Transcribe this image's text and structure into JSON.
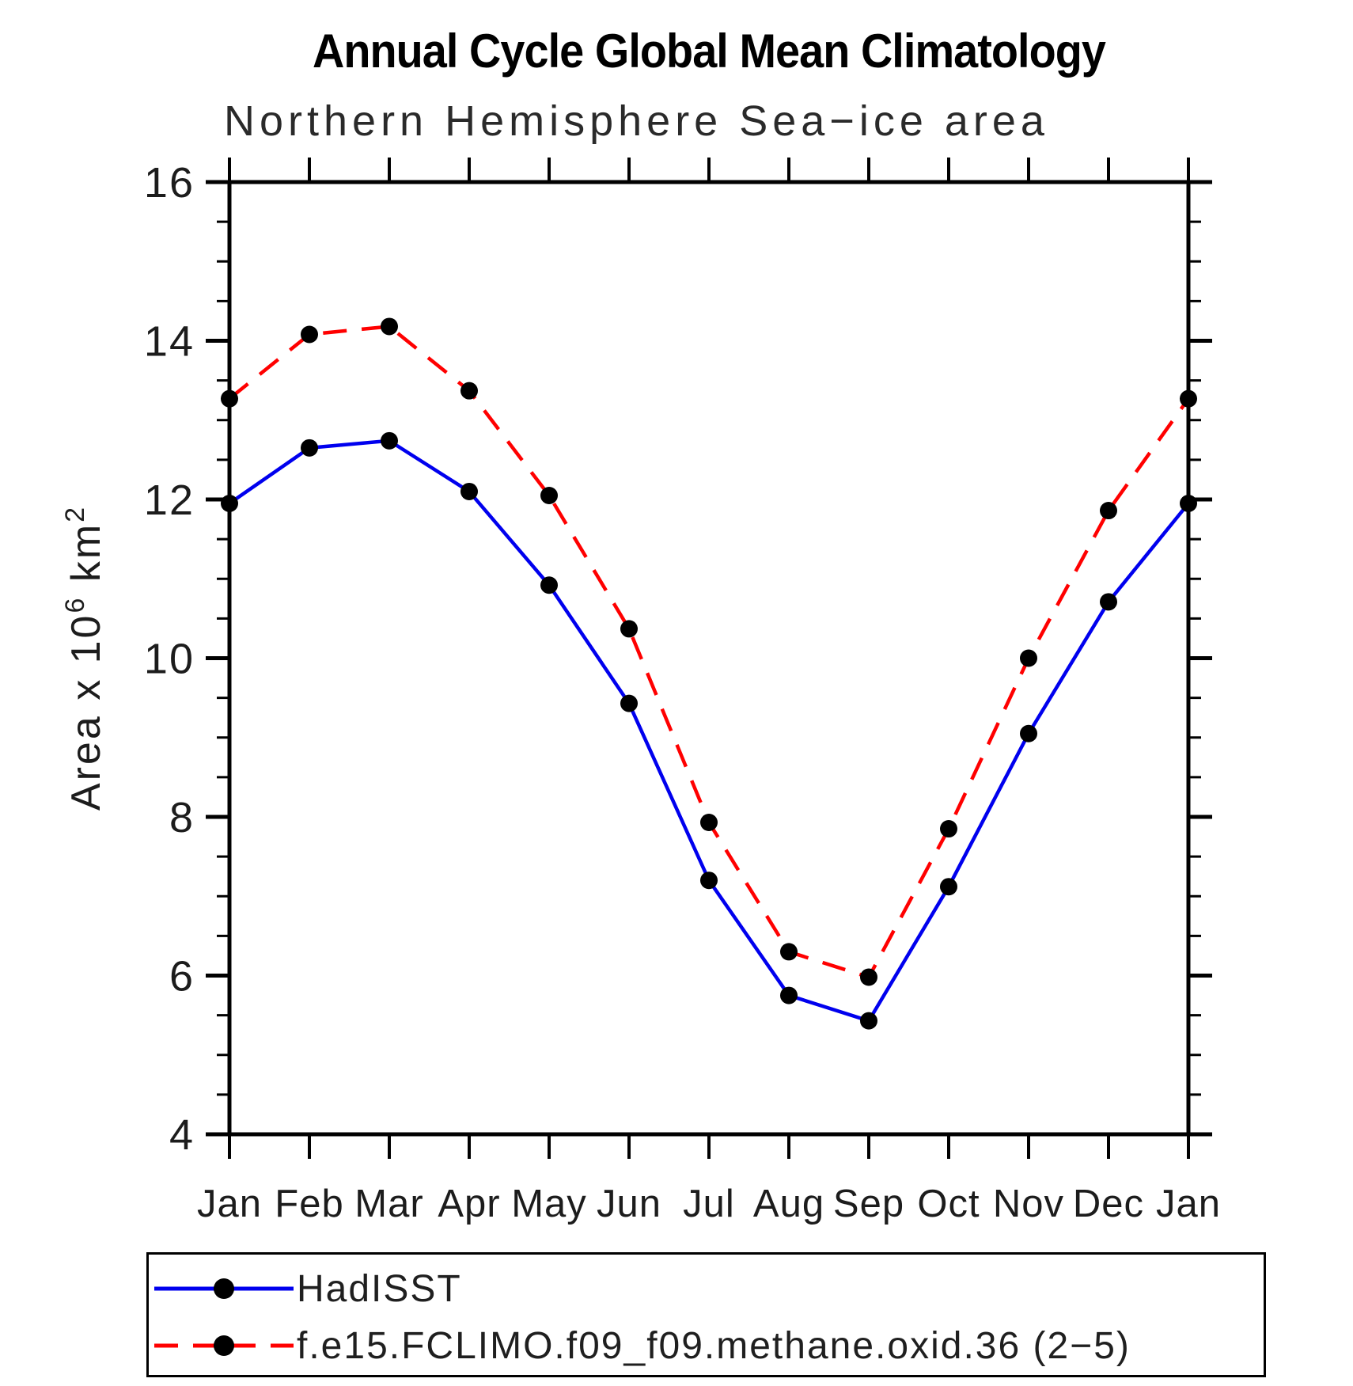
{
  "chart_data": {
    "type": "line",
    "title": "Annual Cycle Global Mean Climatology",
    "subtitle": "Northern Hemisphere Sea−ice area",
    "ylabel_parts": {
      "prefix": "Area x 10",
      "sup1": "6",
      "mid": " km",
      "sup2": "2"
    },
    "categories": [
      "Jan",
      "Feb",
      "Mar",
      "Apr",
      "May",
      "Jun",
      "Jul",
      "Aug",
      "Sep",
      "Oct",
      "Nov",
      "Dec",
      "Jan"
    ],
    "ylim": [
      4,
      16
    ],
    "yticks": [
      4,
      6,
      8,
      10,
      12,
      14,
      16
    ],
    "y_minor_step": 0.5,
    "grid": "off",
    "legend_position": "bottom",
    "axis_color": "#000000",
    "marker_color": "#000000",
    "series": [
      {
        "name": "HadISST",
        "style": "solid",
        "color": "#0000ee",
        "values": [
          11.95,
          12.65,
          12.74,
          12.1,
          10.92,
          9.43,
          7.2,
          5.75,
          5.43,
          7.12,
          9.05,
          10.71,
          11.95
        ]
      },
      {
        "name": "f.e15.FCLIMO.f09_f09.methane.oxid.36 (2−5)",
        "style": "dashed",
        "color": "#ff0000",
        "values": [
          13.27,
          14.08,
          14.18,
          13.37,
          12.05,
          10.37,
          7.93,
          6.3,
          5.98,
          7.85,
          10.0,
          11.86,
          13.27
        ]
      }
    ]
  }
}
